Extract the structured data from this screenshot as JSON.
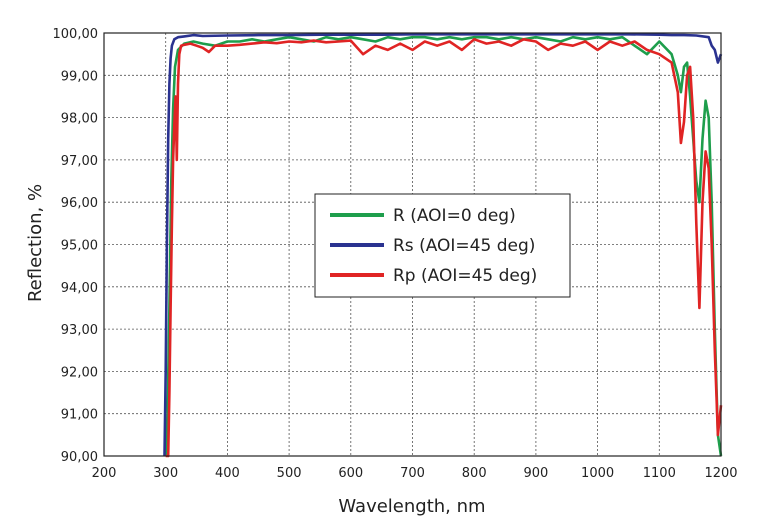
{
  "chart_data": {
    "type": "line",
    "xlabel": "Wavelength, nm",
    "ylabel": "Reflection, %",
    "xlim": [
      200,
      1200
    ],
    "ylim": [
      90,
      100
    ],
    "grid": true,
    "legend_placement": "center",
    "x_ticks": [
      "200",
      "300",
      "400",
      "500",
      "600",
      "700",
      "800",
      "900",
      "1000",
      "1100",
      "1200"
    ],
    "y_ticks": [
      "90,00",
      "91,00",
      "92,00",
      "93,00",
      "94,00",
      "95,00",
      "96,00",
      "97,00",
      "98,00",
      "99,00",
      "100,00"
    ],
    "series": [
      {
        "name": "R (AOI=0 deg)",
        "color": "#1e9e4c",
        "x": [
          300,
          303,
          306,
          309,
          312,
          315,
          320,
          330,
          345,
          360,
          380,
          400,
          420,
          440,
          460,
          480,
          500,
          520,
          540,
          560,
          580,
          600,
          620,
          640,
          660,
          680,
          700,
          720,
          740,
          760,
          780,
          800,
          820,
          840,
          860,
          880,
          900,
          920,
          940,
          960,
          980,
          1000,
          1020,
          1040,
          1060,
          1080,
          1100,
          1120,
          1130,
          1135,
          1140,
          1145,
          1150,
          1155,
          1160,
          1165,
          1170,
          1175,
          1180,
          1185,
          1190,
          1195,
          1200
        ],
        "y": [
          90,
          91,
          93.5,
          96.5,
          98.2,
          99.2,
          99.6,
          99.75,
          99.8,
          99.75,
          99.7,
          99.8,
          99.8,
          99.85,
          99.8,
          99.85,
          99.9,
          99.85,
          99.8,
          99.9,
          99.85,
          99.9,
          99.85,
          99.8,
          99.9,
          99.85,
          99.9,
          99.9,
          99.85,
          99.9,
          99.85,
          99.9,
          99.9,
          99.85,
          99.9,
          99.85,
          99.9,
          99.85,
          99.8,
          99.9,
          99.85,
          99.9,
          99.85,
          99.9,
          99.7,
          99.5,
          99.8,
          99.5,
          99.0,
          98.6,
          99.2,
          99.3,
          98.5,
          97.5,
          96.5,
          96.0,
          97.5,
          98.4,
          98.0,
          96.0,
          93.0,
          90.5,
          90
        ]
      },
      {
        "name": "Rs (AOI=45 deg)",
        "color": "#2a3290",
        "x": [
          298,
          300,
          302,
          304,
          306,
          308,
          310,
          314,
          320,
          330,
          345,
          360,
          400,
          450,
          500,
          550,
          600,
          650,
          700,
          750,
          800,
          850,
          900,
          950,
          1000,
          1050,
          1100,
          1120,
          1140,
          1160,
          1180,
          1185,
          1190,
          1195,
          1200
        ],
        "y": [
          90,
          92,
          95,
          97.5,
          98.8,
          99.4,
          99.7,
          99.85,
          99.9,
          99.92,
          99.95,
          99.93,
          99.94,
          99.95,
          99.95,
          99.96,
          99.96,
          99.96,
          99.97,
          99.97,
          99.97,
          99.97,
          99.97,
          99.97,
          99.97,
          99.97,
          99.96,
          99.95,
          99.95,
          99.94,
          99.9,
          99.7,
          99.6,
          99.3,
          99.5
        ]
      },
      {
        "name": "Rp (AOI=45 deg)",
        "color": "#e02424",
        "x": [
          300,
          304,
          306,
          308,
          310,
          312,
          314,
          316,
          318,
          320,
          322,
          325,
          330,
          340,
          350,
          360,
          370,
          380,
          400,
          420,
          440,
          460,
          480,
          500,
          520,
          540,
          560,
          580,
          600,
          620,
          640,
          660,
          680,
          700,
          720,
          740,
          760,
          780,
          800,
          820,
          840,
          860,
          880,
          900,
          920,
          940,
          960,
          980,
          1000,
          1020,
          1040,
          1060,
          1080,
          1100,
          1120,
          1130,
          1135,
          1140,
          1145,
          1150,
          1155,
          1160,
          1165,
          1170,
          1175,
          1180,
          1185,
          1190,
          1195,
          1200
        ],
        "y": [
          90,
          90,
          91.5,
          93.5,
          95.5,
          97.0,
          97.8,
          98.5,
          97.0,
          98.8,
          99.5,
          99.7,
          99.72,
          99.75,
          99.7,
          99.65,
          99.55,
          99.7,
          99.7,
          99.72,
          99.75,
          99.78,
          99.76,
          99.8,
          99.78,
          99.82,
          99.78,
          99.8,
          99.82,
          99.5,
          99.7,
          99.6,
          99.75,
          99.6,
          99.8,
          99.7,
          99.8,
          99.6,
          99.85,
          99.75,
          99.8,
          99.7,
          99.85,
          99.8,
          99.6,
          99.75,
          99.7,
          99.8,
          99.6,
          99.8,
          99.7,
          99.8,
          99.6,
          99.5,
          99.3,
          98.6,
          97.4,
          97.9,
          99.0,
          99.2,
          98.0,
          95.5,
          93.5,
          96.0,
          97.2,
          96.8,
          95.0,
          92.5,
          90.5,
          91.2
        ]
      }
    ]
  }
}
